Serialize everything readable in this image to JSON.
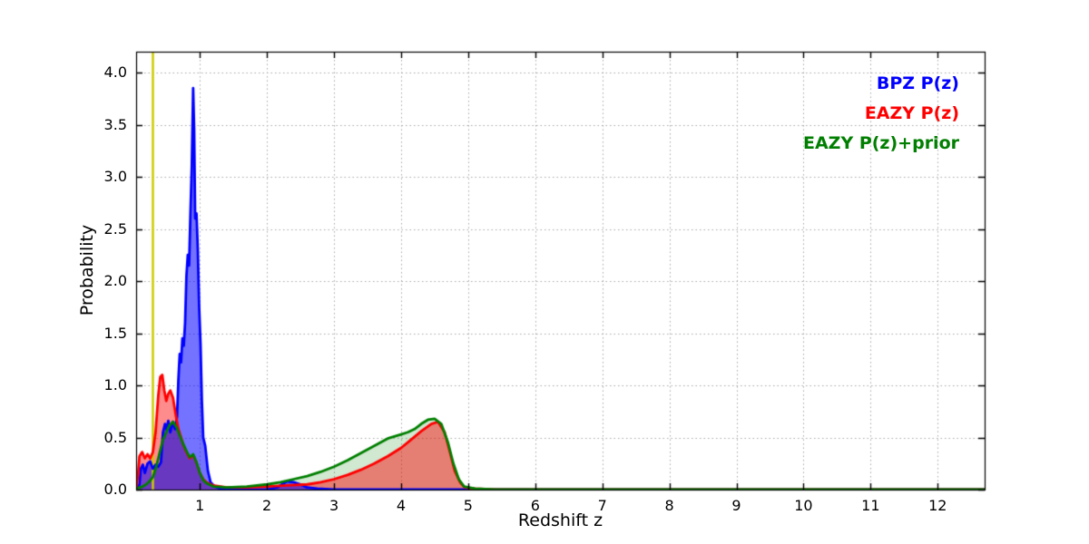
{
  "chart_data": {
    "type": "line",
    "title": "",
    "xlabel": "Redshift z",
    "ylabel": "Probability",
    "xlim": [
      0.05,
      12.7
    ],
    "ylim": [
      0,
      4.2
    ],
    "grid": true,
    "xticks": [
      1,
      2,
      3,
      4,
      5,
      6,
      7,
      8,
      9,
      10,
      11,
      12
    ],
    "xtick_labels": [
      "1",
      "2",
      "3",
      "4",
      "5",
      "6",
      "7",
      "8",
      "9",
      "10",
      "11",
      "12"
    ],
    "yticks": [
      0.0,
      0.5,
      1.0,
      1.5,
      2.0,
      2.5,
      3.0,
      3.5,
      4.0
    ],
    "ytick_labels": [
      "0.0",
      "0.5",
      "1.0",
      "1.5",
      "2.0",
      "2.5",
      "3.0",
      "3.5",
      "4.0"
    ],
    "vline": {
      "x": 0.3,
      "color": "#cdcd00",
      "width": 2.5
    },
    "legend": {
      "position": "top-right",
      "items": [
        {
          "label": "BPZ P(z)",
          "color": "#0000ff"
        },
        {
          "label": "EAZY P(z)",
          "color": "#ff0000"
        },
        {
          "label": "EAZY P(z)+prior",
          "color": "#007f00"
        }
      ]
    },
    "series": [
      {
        "name": "BPZ P(z)",
        "color": "#0000ff",
        "fill_opacity": 0.55,
        "points": [
          [
            0.05,
            0.0
          ],
          [
            0.08,
            0.02
          ],
          [
            0.1,
            0.05
          ],
          [
            0.12,
            0.2
          ],
          [
            0.15,
            0.24
          ],
          [
            0.18,
            0.16
          ],
          [
            0.22,
            0.25
          ],
          [
            0.26,
            0.27
          ],
          [
            0.3,
            0.2
          ],
          [
            0.34,
            0.24
          ],
          [
            0.38,
            0.22
          ],
          [
            0.42,
            0.26
          ],
          [
            0.45,
            0.55
          ],
          [
            0.48,
            0.63
          ],
          [
            0.5,
            0.58
          ],
          [
            0.53,
            0.66
          ],
          [
            0.56,
            0.55
          ],
          [
            0.6,
            0.65
          ],
          [
            0.63,
            0.58
          ],
          [
            0.66,
            0.7
          ],
          [
            0.68,
            1.05
          ],
          [
            0.7,
            1.3
          ],
          [
            0.72,
            1.22
          ],
          [
            0.74,
            1.45
          ],
          [
            0.76,
            1.38
          ],
          [
            0.78,
            1.6
          ],
          [
            0.8,
            2.05
          ],
          [
            0.82,
            2.25
          ],
          [
            0.84,
            2.15
          ],
          [
            0.86,
            2.65
          ],
          [
            0.88,
            3.1
          ],
          [
            0.9,
            3.85
          ],
          [
            0.915,
            3.45
          ],
          [
            0.93,
            2.6
          ],
          [
            0.95,
            2.65
          ],
          [
            0.97,
            2.3
          ],
          [
            0.99,
            1.75
          ],
          [
            1.01,
            1.4
          ],
          [
            1.03,
            0.85
          ],
          [
            1.05,
            0.5
          ],
          [
            1.08,
            0.42
          ],
          [
            1.12,
            0.18
          ],
          [
            1.16,
            0.07
          ],
          [
            1.22,
            0.03
          ],
          [
            1.3,
            0.01
          ],
          [
            1.5,
            0.0
          ],
          [
            2.0,
            0.0
          ],
          [
            2.15,
            0.02
          ],
          [
            2.3,
            0.08
          ],
          [
            2.4,
            0.07
          ],
          [
            2.5,
            0.05
          ],
          [
            2.6,
            0.02
          ],
          [
            2.75,
            0.01
          ],
          [
            3.0,
            0.0
          ],
          [
            4.0,
            0.0
          ],
          [
            6.0,
            0.0
          ],
          [
            12.7,
            0.0
          ]
        ]
      },
      {
        "name": "EAZY P(z)",
        "color": "#ff0000",
        "fill_opacity": 0.45,
        "points": [
          [
            0.05,
            0.0
          ],
          [
            0.08,
            0.15
          ],
          [
            0.1,
            0.32
          ],
          [
            0.14,
            0.36
          ],
          [
            0.18,
            0.3
          ],
          [
            0.22,
            0.34
          ],
          [
            0.26,
            0.3
          ],
          [
            0.3,
            0.36
          ],
          [
            0.34,
            0.55
          ],
          [
            0.38,
            0.9
          ],
          [
            0.41,
            1.08
          ],
          [
            0.44,
            1.1
          ],
          [
            0.47,
            0.95
          ],
          [
            0.5,
            0.85
          ],
          [
            0.53,
            0.92
          ],
          [
            0.56,
            0.95
          ],
          [
            0.6,
            0.88
          ],
          [
            0.64,
            0.72
          ],
          [
            0.68,
            0.58
          ],
          [
            0.72,
            0.5
          ],
          [
            0.76,
            0.42
          ],
          [
            0.8,
            0.36
          ],
          [
            0.85,
            0.3
          ],
          [
            0.9,
            0.33
          ],
          [
            0.95,
            0.26
          ],
          [
            1.0,
            0.16
          ],
          [
            1.05,
            0.1
          ],
          [
            1.1,
            0.07
          ],
          [
            1.2,
            0.04
          ],
          [
            1.4,
            0.02
          ],
          [
            1.7,
            0.02
          ],
          [
            2.0,
            0.03
          ],
          [
            2.3,
            0.04
          ],
          [
            2.6,
            0.05
          ],
          [
            2.8,
            0.07
          ],
          [
            3.0,
            0.1
          ],
          [
            3.2,
            0.14
          ],
          [
            3.4,
            0.19
          ],
          [
            3.6,
            0.25
          ],
          [
            3.8,
            0.32
          ],
          [
            4.0,
            0.4
          ],
          [
            4.15,
            0.48
          ],
          [
            4.3,
            0.56
          ],
          [
            4.45,
            0.63
          ],
          [
            4.55,
            0.65
          ],
          [
            4.65,
            0.55
          ],
          [
            4.72,
            0.38
          ],
          [
            4.8,
            0.18
          ],
          [
            4.88,
            0.07
          ],
          [
            4.95,
            0.02
          ],
          [
            5.1,
            0.01
          ],
          [
            5.4,
            0.0
          ],
          [
            6.0,
            0.0
          ],
          [
            12.7,
            0.0
          ]
        ]
      },
      {
        "name": "EAZY P(z)+prior",
        "color": "#007f00",
        "fill_opacity": 0.18,
        "points": [
          [
            0.05,
            0.0
          ],
          [
            0.1,
            0.02
          ],
          [
            0.15,
            0.03
          ],
          [
            0.2,
            0.05
          ],
          [
            0.25,
            0.08
          ],
          [
            0.3,
            0.12
          ],
          [
            0.35,
            0.22
          ],
          [
            0.4,
            0.35
          ],
          [
            0.45,
            0.48
          ],
          [
            0.5,
            0.55
          ],
          [
            0.55,
            0.62
          ],
          [
            0.6,
            0.65
          ],
          [
            0.65,
            0.6
          ],
          [
            0.7,
            0.52
          ],
          [
            0.75,
            0.44
          ],
          [
            0.8,
            0.37
          ],
          [
            0.85,
            0.31
          ],
          [
            0.9,
            0.34
          ],
          [
            0.95,
            0.26
          ],
          [
            1.0,
            0.16
          ],
          [
            1.05,
            0.09
          ],
          [
            1.1,
            0.06
          ],
          [
            1.2,
            0.03
          ],
          [
            1.4,
            0.02
          ],
          [
            1.7,
            0.03
          ],
          [
            2.0,
            0.05
          ],
          [
            2.2,
            0.07
          ],
          [
            2.4,
            0.1
          ],
          [
            2.6,
            0.13
          ],
          [
            2.8,
            0.17
          ],
          [
            3.0,
            0.22
          ],
          [
            3.2,
            0.28
          ],
          [
            3.4,
            0.35
          ],
          [
            3.6,
            0.42
          ],
          [
            3.8,
            0.49
          ],
          [
            4.0,
            0.53
          ],
          [
            4.1,
            0.55
          ],
          [
            4.2,
            0.58
          ],
          [
            4.3,
            0.63
          ],
          [
            4.4,
            0.67
          ],
          [
            4.5,
            0.68
          ],
          [
            4.6,
            0.63
          ],
          [
            4.7,
            0.45
          ],
          [
            4.78,
            0.25
          ],
          [
            4.86,
            0.1
          ],
          [
            4.94,
            0.03
          ],
          [
            5.1,
            0.01
          ],
          [
            5.4,
            0.0
          ],
          [
            6.0,
            0.0
          ],
          [
            12.7,
            0.0
          ]
        ]
      }
    ]
  }
}
